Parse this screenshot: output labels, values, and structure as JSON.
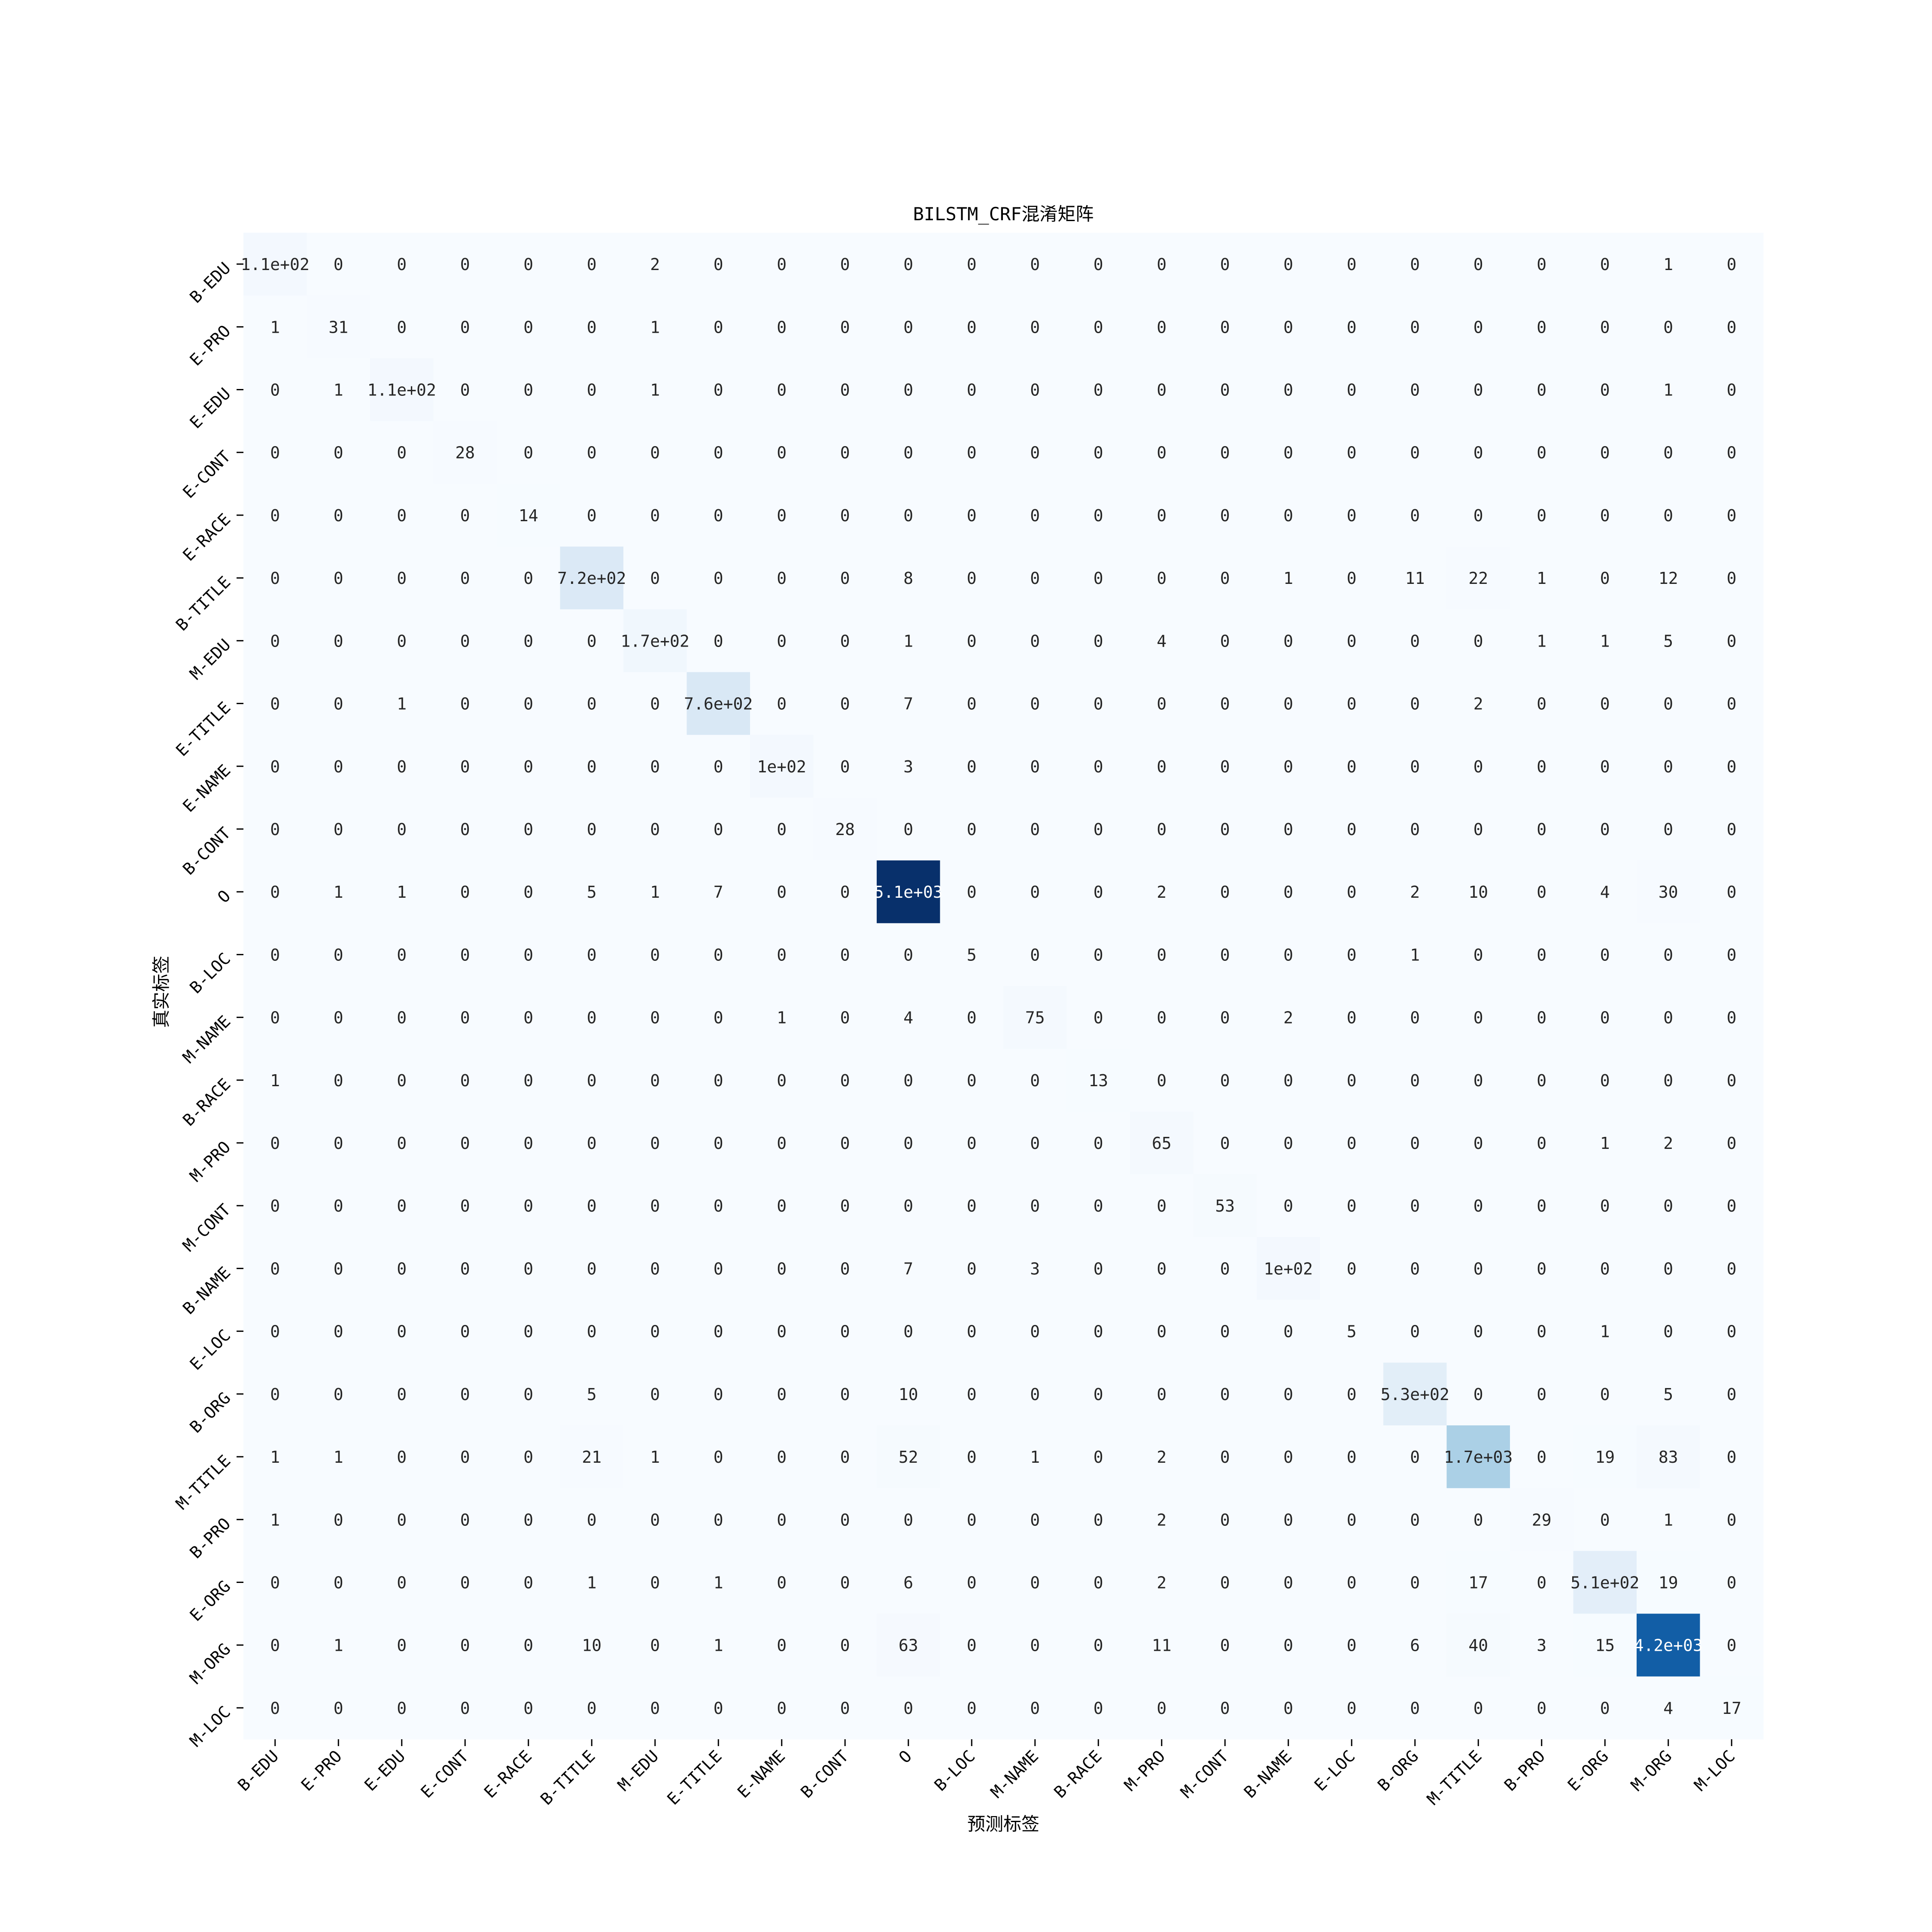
{
  "chart_data": {
    "type": "heatmap",
    "title": "BILSTM_CRF混淆矩阵",
    "xlabel": "预测标签",
    "ylabel": "真实标签",
    "x_labels": [
      "B-EDU",
      "E-PRO",
      "E-EDU",
      "E-CONT",
      "E-RACE",
      "B-TITLE",
      "M-EDU",
      "E-TITLE",
      "E-NAME",
      "B-CONT",
      "O",
      "B-LOC",
      "M-NAME",
      "B-RACE",
      "M-PRO",
      "M-CONT",
      "B-NAME",
      "E-LOC",
      "B-ORG",
      "M-TITLE",
      "B-PRO",
      "E-ORG",
      "M-ORG",
      "M-LOC"
    ],
    "y_labels": [
      "B-EDU",
      "E-PRO",
      "E-EDU",
      "E-CONT",
      "E-RACE",
      "B-TITLE",
      "M-EDU",
      "E-TITLE",
      "E-NAME",
      "B-CONT",
      "O",
      "B-LOC",
      "M-NAME",
      "B-RACE",
      "M-PRO",
      "M-CONT",
      "B-NAME",
      "E-LOC",
      "B-ORG",
      "M-TITLE",
      "B-PRO",
      "E-ORG",
      "M-ORG",
      "M-LOC"
    ],
    "values": [
      [
        110,
        0,
        0,
        0,
        0,
        0,
        2,
        0,
        0,
        0,
        0,
        0,
        0,
        0,
        0,
        0,
        0,
        0,
        0,
        0,
        0,
        0,
        1,
        0
      ],
      [
        1,
        31,
        0,
        0,
        0,
        0,
        1,
        0,
        0,
        0,
        0,
        0,
        0,
        0,
        0,
        0,
        0,
        0,
        0,
        0,
        0,
        0,
        0,
        0
      ],
      [
        0,
        1,
        110,
        0,
        0,
        0,
        1,
        0,
        0,
        0,
        0,
        0,
        0,
        0,
        0,
        0,
        0,
        0,
        0,
        0,
        0,
        0,
        1,
        0
      ],
      [
        0,
        0,
        0,
        28,
        0,
        0,
        0,
        0,
        0,
        0,
        0,
        0,
        0,
        0,
        0,
        0,
        0,
        0,
        0,
        0,
        0,
        0,
        0,
        0
      ],
      [
        0,
        0,
        0,
        0,
        14,
        0,
        0,
        0,
        0,
        0,
        0,
        0,
        0,
        0,
        0,
        0,
        0,
        0,
        0,
        0,
        0,
        0,
        0,
        0
      ],
      [
        0,
        0,
        0,
        0,
        0,
        720,
        0,
        0,
        0,
        0,
        8,
        0,
        0,
        0,
        0,
        0,
        1,
        0,
        11,
        22,
        1,
        0,
        12,
        0
      ],
      [
        0,
        0,
        0,
        0,
        0,
        0,
        170,
        0,
        0,
        0,
        1,
        0,
        0,
        0,
        4,
        0,
        0,
        0,
        0,
        0,
        1,
        1,
        5,
        0
      ],
      [
        0,
        0,
        1,
        0,
        0,
        0,
        0,
        760,
        0,
        0,
        7,
        0,
        0,
        0,
        0,
        0,
        0,
        0,
        0,
        2,
        0,
        0,
        0,
        0
      ],
      [
        0,
        0,
        0,
        0,
        0,
        0,
        0,
        0,
        100,
        0,
        3,
        0,
        0,
        0,
        0,
        0,
        0,
        0,
        0,
        0,
        0,
        0,
        0,
        0
      ],
      [
        0,
        0,
        0,
        0,
        0,
        0,
        0,
        0,
        0,
        28,
        0,
        0,
        0,
        0,
        0,
        0,
        0,
        0,
        0,
        0,
        0,
        0,
        0,
        0
      ],
      [
        0,
        1,
        1,
        0,
        0,
        5,
        1,
        7,
        0,
        0,
        5100,
        0,
        0,
        0,
        2,
        0,
        0,
        0,
        2,
        10,
        0,
        4,
        30,
        0
      ],
      [
        0,
        0,
        0,
        0,
        0,
        0,
        0,
        0,
        0,
        0,
        0,
        5,
        0,
        0,
        0,
        0,
        0,
        0,
        1,
        0,
        0,
        0,
        0,
        0
      ],
      [
        0,
        0,
        0,
        0,
        0,
        0,
        0,
        0,
        1,
        0,
        4,
        0,
        75,
        0,
        0,
        0,
        2,
        0,
        0,
        0,
        0,
        0,
        0,
        0
      ],
      [
        1,
        0,
        0,
        0,
        0,
        0,
        0,
        0,
        0,
        0,
        0,
        0,
        0,
        13,
        0,
        0,
        0,
        0,
        0,
        0,
        0,
        0,
        0,
        0
      ],
      [
        0,
        0,
        0,
        0,
        0,
        0,
        0,
        0,
        0,
        0,
        0,
        0,
        0,
        0,
        65,
        0,
        0,
        0,
        0,
        0,
        0,
        1,
        2,
        0
      ],
      [
        0,
        0,
        0,
        0,
        0,
        0,
        0,
        0,
        0,
        0,
        0,
        0,
        0,
        0,
        0,
        53,
        0,
        0,
        0,
        0,
        0,
        0,
        0,
        0
      ],
      [
        0,
        0,
        0,
        0,
        0,
        0,
        0,
        0,
        0,
        0,
        7,
        0,
        3,
        0,
        0,
        0,
        100,
        0,
        0,
        0,
        0,
        0,
        0,
        0
      ],
      [
        0,
        0,
        0,
        0,
        0,
        0,
        0,
        0,
        0,
        0,
        0,
        0,
        0,
        0,
        0,
        0,
        0,
        5,
        0,
        0,
        0,
        1,
        0,
        0
      ],
      [
        0,
        0,
        0,
        0,
        0,
        5,
        0,
        0,
        0,
        0,
        10,
        0,
        0,
        0,
        0,
        0,
        0,
        0,
        530,
        0,
        0,
        0,
        5,
        0
      ],
      [
        1,
        1,
        0,
        0,
        0,
        21,
        1,
        0,
        0,
        0,
        52,
        0,
        1,
        0,
        2,
        0,
        0,
        0,
        0,
        1700,
        0,
        19,
        83,
        0
      ],
      [
        1,
        0,
        0,
        0,
        0,
        0,
        0,
        0,
        0,
        0,
        0,
        0,
        0,
        0,
        2,
        0,
        0,
        0,
        0,
        0,
        29,
        0,
        1,
        0
      ],
      [
        0,
        0,
        0,
        0,
        0,
        1,
        0,
        1,
        0,
        0,
        6,
        0,
        0,
        0,
        2,
        0,
        0,
        0,
        0,
        17,
        0,
        510,
        19,
        0
      ],
      [
        0,
        1,
        0,
        0,
        0,
        10,
        0,
        1,
        0,
        0,
        63,
        0,
        0,
        0,
        11,
        0,
        0,
        0,
        6,
        40,
        3,
        15,
        4200,
        0
      ],
      [
        0,
        0,
        0,
        0,
        0,
        0,
        0,
        0,
        0,
        0,
        0,
        0,
        0,
        0,
        0,
        0,
        0,
        0,
        0,
        0,
        0,
        0,
        4,
        17
      ]
    ],
    "annotations": [
      [
        "1.1e+02",
        "0",
        "0",
        "0",
        "0",
        "0",
        "2",
        "0",
        "0",
        "0",
        "0",
        "0",
        "0",
        "0",
        "0",
        "0",
        "0",
        "0",
        "0",
        "0",
        "0",
        "0",
        "1",
        "0"
      ],
      [
        "1",
        "31",
        "0",
        "0",
        "0",
        "0",
        "1",
        "0",
        "0",
        "0",
        "0",
        "0",
        "0",
        "0",
        "0",
        "0",
        "0",
        "0",
        "0",
        "0",
        "0",
        "0",
        "0",
        "0"
      ],
      [
        "0",
        "1",
        "1.1e+02",
        "0",
        "0",
        "0",
        "1",
        "0",
        "0",
        "0",
        "0",
        "0",
        "0",
        "0",
        "0",
        "0",
        "0",
        "0",
        "0",
        "0",
        "0",
        "0",
        "1",
        "0"
      ],
      [
        "0",
        "0",
        "0",
        "28",
        "0",
        "0",
        "0",
        "0",
        "0",
        "0",
        "0",
        "0",
        "0",
        "0",
        "0",
        "0",
        "0",
        "0",
        "0",
        "0",
        "0",
        "0",
        "0",
        "0"
      ],
      [
        "0",
        "0",
        "0",
        "0",
        "14",
        "0",
        "0",
        "0",
        "0",
        "0",
        "0",
        "0",
        "0",
        "0",
        "0",
        "0",
        "0",
        "0",
        "0",
        "0",
        "0",
        "0",
        "0",
        "0"
      ],
      [
        "0",
        "0",
        "0",
        "0",
        "0",
        "7.2e+02",
        "0",
        "0",
        "0",
        "0",
        "8",
        "0",
        "0",
        "0",
        "0",
        "0",
        "1",
        "0",
        "11",
        "22",
        "1",
        "0",
        "12",
        "0"
      ],
      [
        "0",
        "0",
        "0",
        "0",
        "0",
        "0",
        "1.7e+02",
        "0",
        "0",
        "0",
        "1",
        "0",
        "0",
        "0",
        "4",
        "0",
        "0",
        "0",
        "0",
        "0",
        "1",
        "1",
        "5",
        "0"
      ],
      [
        "0",
        "0",
        "1",
        "0",
        "0",
        "0",
        "0",
        "7.6e+02",
        "0",
        "0",
        "7",
        "0",
        "0",
        "0",
        "0",
        "0",
        "0",
        "0",
        "0",
        "2",
        "0",
        "0",
        "0",
        "0"
      ],
      [
        "0",
        "0",
        "0",
        "0",
        "0",
        "0",
        "0",
        "0",
        "1e+02",
        "0",
        "3",
        "0",
        "0",
        "0",
        "0",
        "0",
        "0",
        "0",
        "0",
        "0",
        "0",
        "0",
        "0",
        "0"
      ],
      [
        "0",
        "0",
        "0",
        "0",
        "0",
        "0",
        "0",
        "0",
        "0",
        "28",
        "0",
        "0",
        "0",
        "0",
        "0",
        "0",
        "0",
        "0",
        "0",
        "0",
        "0",
        "0",
        "0",
        "0"
      ],
      [
        "0",
        "1",
        "1",
        "0",
        "0",
        "5",
        "1",
        "7",
        "0",
        "0",
        "5.1e+03",
        "0",
        "0",
        "0",
        "2",
        "0",
        "0",
        "0",
        "2",
        "10",
        "0",
        "4",
        "30",
        "0"
      ],
      [
        "0",
        "0",
        "0",
        "0",
        "0",
        "0",
        "0",
        "0",
        "0",
        "0",
        "0",
        "5",
        "0",
        "0",
        "0",
        "0",
        "0",
        "0",
        "1",
        "0",
        "0",
        "0",
        "0",
        "0"
      ],
      [
        "0",
        "0",
        "0",
        "0",
        "0",
        "0",
        "0",
        "0",
        "1",
        "0",
        "4",
        "0",
        "75",
        "0",
        "0",
        "0",
        "2",
        "0",
        "0",
        "0",
        "0",
        "0",
        "0",
        "0"
      ],
      [
        "1",
        "0",
        "0",
        "0",
        "0",
        "0",
        "0",
        "0",
        "0",
        "0",
        "0",
        "0",
        "0",
        "13",
        "0",
        "0",
        "0",
        "0",
        "0",
        "0",
        "0",
        "0",
        "0",
        "0"
      ],
      [
        "0",
        "0",
        "0",
        "0",
        "0",
        "0",
        "0",
        "0",
        "0",
        "0",
        "0",
        "0",
        "0",
        "0",
        "65",
        "0",
        "0",
        "0",
        "0",
        "0",
        "0",
        "1",
        "2",
        "0"
      ],
      [
        "0",
        "0",
        "0",
        "0",
        "0",
        "0",
        "0",
        "0",
        "0",
        "0",
        "0",
        "0",
        "0",
        "0",
        "0",
        "53",
        "0",
        "0",
        "0",
        "0",
        "0",
        "0",
        "0",
        "0"
      ],
      [
        "0",
        "0",
        "0",
        "0",
        "0",
        "0",
        "0",
        "0",
        "0",
        "0",
        "7",
        "0",
        "3",
        "0",
        "0",
        "0",
        "1e+02",
        "0",
        "0",
        "0",
        "0",
        "0",
        "0",
        "0"
      ],
      [
        "0",
        "0",
        "0",
        "0",
        "0",
        "0",
        "0",
        "0",
        "0",
        "0",
        "0",
        "0",
        "0",
        "0",
        "0",
        "0",
        "0",
        "5",
        "0",
        "0",
        "0",
        "1",
        "0",
        "0"
      ],
      [
        "0",
        "0",
        "0",
        "0",
        "0",
        "5",
        "0",
        "0",
        "0",
        "0",
        "10",
        "0",
        "0",
        "0",
        "0",
        "0",
        "0",
        "0",
        "5.3e+02",
        "0",
        "0",
        "0",
        "5",
        "0"
      ],
      [
        "1",
        "1",
        "0",
        "0",
        "0",
        "21",
        "1",
        "0",
        "0",
        "0",
        "52",
        "0",
        "1",
        "0",
        "2",
        "0",
        "0",
        "0",
        "0",
        "1.7e+03",
        "0",
        "19",
        "83",
        "0"
      ],
      [
        "1",
        "0",
        "0",
        "0",
        "0",
        "0",
        "0",
        "0",
        "0",
        "0",
        "0",
        "0",
        "0",
        "0",
        "2",
        "0",
        "0",
        "0",
        "0",
        "0",
        "29",
        "0",
        "1",
        "0"
      ],
      [
        "0",
        "0",
        "0",
        "0",
        "0",
        "1",
        "0",
        "1",
        "0",
        "0",
        "6",
        "0",
        "0",
        "0",
        "2",
        "0",
        "0",
        "0",
        "0",
        "17",
        "0",
        "5.1e+02",
        "19",
        "0"
      ],
      [
        "0",
        "1",
        "0",
        "0",
        "0",
        "10",
        "0",
        "1",
        "0",
        "0",
        "63",
        "0",
        "0",
        "0",
        "11",
        "0",
        "0",
        "0",
        "6",
        "40",
        "3",
        "15",
        "4.2e+03",
        "0"
      ],
      [
        "0",
        "0",
        "0",
        "0",
        "0",
        "0",
        "0",
        "0",
        "0",
        "0",
        "0",
        "0",
        "0",
        "0",
        "0",
        "0",
        "0",
        "0",
        "0",
        "0",
        "0",
        "0",
        "4",
        "17"
      ]
    ],
    "colormap": "Blues",
    "vmin": 0,
    "vmax": 5100,
    "grid": false,
    "legend": "none"
  }
}
